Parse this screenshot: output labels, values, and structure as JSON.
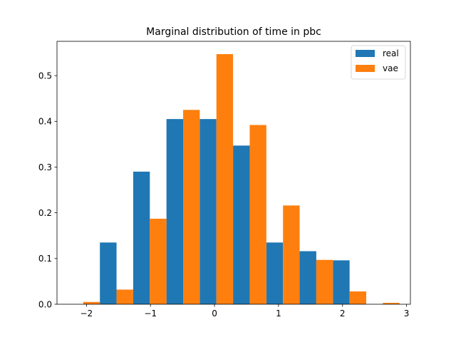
{
  "chart_data": {
    "type": "bar",
    "title": "Marginal distribution of time in pbc",
    "xlabel": "",
    "ylabel": "",
    "xlim": [
      -2.46,
      3.06
    ],
    "ylim": [
      0.0,
      0.575
    ],
    "xticks": [
      -2,
      -1,
      0,
      1,
      2,
      3
    ],
    "yticks": [
      0.0,
      0.1,
      0.2,
      0.3,
      0.4,
      0.5
    ],
    "xtick_labels": [
      "−2",
      "−1",
      "0",
      "1",
      "2",
      "3"
    ],
    "ytick_labels": [
      "0.0",
      "0.1",
      "0.2",
      "0.3",
      "0.4",
      "0.5"
    ],
    "grid": false,
    "legend_position": "top-right",
    "bin_edges": [
      -2.31,
      -1.79,
      -1.27,
      -0.75,
      -0.23,
      0.29,
      0.81,
      1.33,
      1.85,
      2.37,
      2.89
    ],
    "series": [
      {
        "name": "real",
        "color": "#1f77b4",
        "values": [
          0.0,
          0.135,
          0.29,
          0.405,
          0.405,
          0.347,
          0.135,
          0.116,
          0.096,
          0.0
        ]
      },
      {
        "name": "vae",
        "color": "#ff7f0e",
        "values": [
          0.005,
          0.032,
          0.187,
          0.425,
          0.547,
          0.392,
          0.216,
          0.097,
          0.028,
          0.003
        ]
      }
    ]
  }
}
